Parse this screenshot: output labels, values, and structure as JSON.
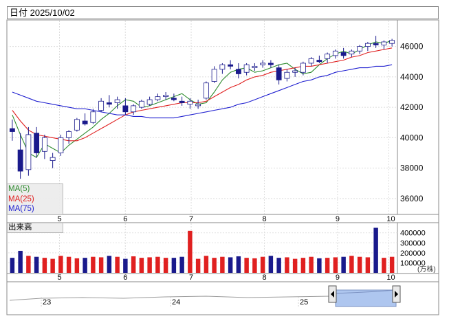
{
  "header": {
    "title": "日付 2025/10/02"
  },
  "legend": {
    "ma5": {
      "label": "MA(5)",
      "color": "#2e8b2e"
    },
    "ma25": {
      "label": "MA(25)",
      "color": "#e02020"
    },
    "ma75": {
      "label": "MA(75)",
      "color": "#2020d0"
    }
  },
  "volume_panel": {
    "label": "出来高",
    "unit": "(万株)"
  },
  "colors": {
    "up_candle": "#ffffff",
    "down_candle": "#1a1a8c",
    "vol_up": "#e02020",
    "vol_down": "#1a1a8c",
    "navigator_fill": "#aec6ef"
  },
  "navigator": {
    "labels": [
      "23",
      "24",
      "25"
    ]
  },
  "chart_data": {
    "type": "candlestick",
    "x_ticks": [
      "5",
      "6",
      "7",
      "8",
      "9",
      "10"
    ],
    "y_ticks": [
      36000,
      38000,
      40000,
      42000,
      44000,
      46000
    ],
    "ylim": [
      35000,
      47700
    ],
    "volume_ticks": [
      "100000",
      "200000",
      "300000",
      "400000"
    ],
    "volume_ylim": [
      0,
      460000
    ],
    "series": [
      {
        "name": "MA(5)",
        "values": [
          41500,
          40200,
          39000,
          38700,
          39600,
          39300,
          39000,
          39500,
          39900,
          40300,
          40700,
          41200,
          41600,
          42100,
          42500,
          42400,
          42000,
          42100,
          42300,
          42500,
          42700,
          42900,
          42500,
          42200,
          42300,
          43000,
          43800,
          44300,
          44500,
          44600,
          44300,
          44400,
          44600,
          44800,
          44900,
          44500,
          44200,
          44300,
          44800,
          45200,
          45500,
          45700,
          45500,
          45800,
          46100,
          46300,
          46200,
          46400
        ]
      },
      {
        "name": "MA(25)",
        "values": [
          41800,
          41100,
          40500,
          40200,
          40100,
          40000,
          39900,
          39800,
          39800,
          40000,
          40300,
          40600,
          40900,
          41200,
          41500,
          41700,
          41800,
          41900,
          42000,
          42100,
          42200,
          42300,
          42300,
          42300,
          42400,
          42700,
          43000,
          43300,
          43500,
          43800,
          44000,
          44100,
          44300,
          44400,
          44500,
          44600,
          44700,
          44700,
          44800,
          44900,
          45000,
          45100,
          45300,
          45400,
          45600,
          45700,
          45800,
          45900
        ]
      },
      {
        "name": "MA(75)",
        "values": [
          43000,
          42800,
          42600,
          42400,
          42300,
          42200,
          42100,
          42000,
          41900,
          41900,
          41800,
          41700,
          41600,
          41500,
          41500,
          41400,
          41400,
          41300,
          41300,
          41300,
          41300,
          41400,
          41500,
          41600,
          41700,
          41800,
          41900,
          42000,
          42200,
          42300,
          42500,
          42700,
          42900,
          43100,
          43300,
          43500,
          43700,
          43800,
          44000,
          44100,
          44300,
          44400,
          44500,
          44600,
          44600,
          44700,
          44700,
          44800
        ]
      }
    ],
    "candles": [
      [
        40600,
        41200,
        39800,
        40400
      ],
      [
        39200,
        40300,
        37300,
        37800
      ],
      [
        37900,
        40700,
        37500,
        40200
      ],
      [
        40300,
        40700,
        38700,
        39000
      ],
      [
        39100,
        40200,
        38600,
        40000
      ],
      [
        38500,
        39000,
        38000,
        38700
      ],
      [
        39000,
        40200,
        38800,
        40000
      ],
      [
        40000,
        40500,
        39600,
        40400
      ],
      [
        40500,
        41300,
        40400,
        41200
      ],
      [
        41100,
        41600,
        40800,
        40900
      ],
      [
        41000,
        41900,
        40900,
        41700
      ],
      [
        41800,
        42600,
        41700,
        42400
      ],
      [
        42300,
        42800,
        42000,
        42200
      ],
      [
        42300,
        42700,
        41900,
        42500
      ],
      [
        42100,
        42600,
        41500,
        41700
      ],
      [
        41700,
        42200,
        41500,
        42100
      ],
      [
        42000,
        42500,
        41900,
        42400
      ],
      [
        42200,
        42700,
        42100,
        42500
      ],
      [
        42500,
        42900,
        42400,
        42700
      ],
      [
        42700,
        43000,
        42500,
        42800
      ],
      [
        42600,
        42900,
        42400,
        42500
      ],
      [
        42400,
        42700,
        42100,
        42300
      ],
      [
        42200,
        42600,
        41900,
        42400
      ],
      [
        42100,
        42500,
        41900,
        42200
      ],
      [
        42600,
        43700,
        42500,
        43600
      ],
      [
        43700,
        44700,
        43600,
        44500
      ],
      [
        44500,
        44900,
        44200,
        44800
      ],
      [
        44800,
        45100,
        44500,
        44700
      ],
      [
        44500,
        44900,
        43900,
        44200
      ],
      [
        44300,
        44900,
        44100,
        44800
      ],
      [
        44600,
        44900,
        44400,
        44700
      ],
      [
        44800,
        45100,
        44600,
        44900
      ],
      [
        44900,
        45100,
        44600,
        44800
      ],
      [
        44600,
        44800,
        43500,
        43800
      ],
      [
        43900,
        44500,
        43700,
        44300
      ],
      [
        44300,
        44600,
        44000,
        44400
      ],
      [
        44300,
        45000,
        44100,
        44900
      ],
      [
        44900,
        45300,
        44700,
        45200
      ],
      [
        45100,
        45400,
        44900,
        45000
      ],
      [
        45200,
        45600,
        44900,
        45500
      ],
      [
        45400,
        45800,
        45200,
        45700
      ],
      [
        45600,
        45900,
        45200,
        45400
      ],
      [
        45500,
        45800,
        45300,
        45700
      ],
      [
        45700,
        46100,
        45500,
        46000
      ],
      [
        46000,
        46300,
        45700,
        46200
      ],
      [
        46200,
        46700,
        45900,
        46100
      ],
      [
        46100,
        46400,
        45800,
        46300
      ],
      [
        46200,
        46500,
        46000,
        46400
      ]
    ],
    "volumes": [
      150000,
      220000,
      170000,
      160000,
      150000,
      140000,
      170000,
      160000,
      145000,
      150000,
      160000,
      155000,
      170000,
      160000,
      140000,
      165000,
      150000,
      155000,
      160000,
      150000,
      150000,
      160000,
      420000,
      140000,
      170000,
      150000,
      160000,
      155000,
      165000,
      150000,
      145000,
      160000,
      170000,
      150000,
      155000,
      140000,
      150000,
      160000,
      145000,
      150000,
      155000,
      160000,
      170000,
      160000,
      155000,
      450000,
      150000,
      160000
    ]
  }
}
